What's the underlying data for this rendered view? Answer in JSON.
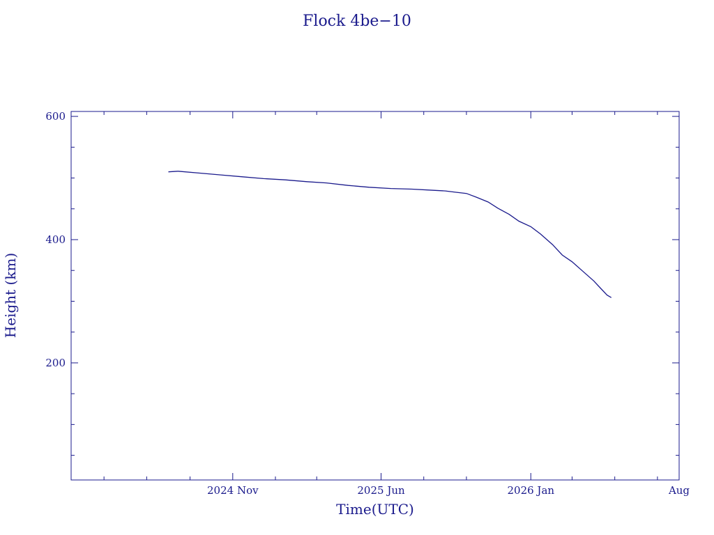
{
  "colors": {
    "ink": "#1a1a8c",
    "background": "#ffffff"
  },
  "chart_data": {
    "type": "line",
    "title": "Flock 4be−10",
    "xlabel": "Time(UTC)",
    "ylabel": "Height (km)",
    "x_axis_type": "date",
    "xlim": [
      "2024-03-15",
      "2026-08-01"
    ],
    "ylim": [
      10,
      608
    ],
    "x_ticks": [
      {
        "label": "2024 Nov",
        "date": "2024-11-01"
      },
      {
        "label": "2025 Jun",
        "date": "2025-06-01"
      },
      {
        "label": "2026 Jan",
        "date": "2026-01-01"
      },
      {
        "label": "Aug",
        "date": "2026-08-01"
      }
    ],
    "x_minor_ticks": [
      "2024-05-01",
      "2024-07-01",
      "2024-09-01",
      "2025-01-01",
      "2025-03-01",
      "2025-08-01",
      "2025-10-01",
      "2026-03-01",
      "2026-05-01",
      "2026-07-01"
    ],
    "y_ticks": [
      200,
      400,
      600
    ],
    "y_minor_ticks": [
      50,
      100,
      150,
      250,
      300,
      350,
      450,
      500,
      550
    ],
    "grid": false,
    "series": [
      {
        "x": [
          "2024-08-01",
          "2024-08-15",
          "2024-09-15",
          "2024-10-15",
          "2024-11-15",
          "2024-12-15",
          "2025-01-15",
          "2025-02-15",
          "2025-03-15",
          "2025-04-15",
          "2025-05-15",
          "2025-06-15",
          "2025-07-15",
          "2025-08-15",
          "2025-09-01",
          "2025-09-15",
          "2025-10-01",
          "2025-10-15",
          "2025-11-01",
          "2025-11-15",
          "2025-12-01",
          "2025-12-15",
          "2026-01-01",
          "2026-01-15",
          "2026-02-01",
          "2026-02-15",
          "2026-03-01",
          "2026-03-15",
          "2026-04-01",
          "2026-04-10",
          "2026-04-20",
          "2026-04-26"
        ],
        "y": [
          510,
          511,
          508,
          505,
          502,
          499,
          497,
          494,
          492,
          488,
          485,
          483,
          482,
          480,
          479,
          477,
          475,
          469,
          461,
          451,
          441,
          430,
          421,
          409,
          392,
          375,
          364,
          350,
          333,
          322,
          310,
          306
        ]
      }
    ]
  }
}
